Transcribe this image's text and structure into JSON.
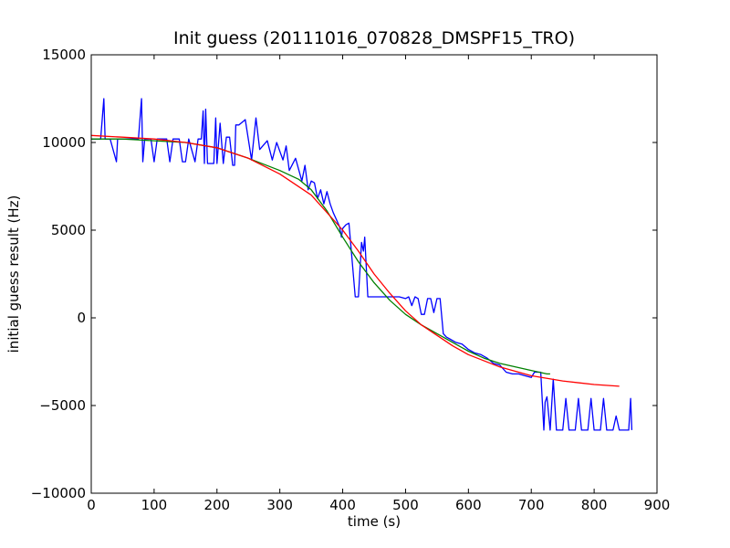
{
  "chart_data": {
    "type": "line",
    "title": "Init guess (20111016_070828_DMSPF15_TRO)",
    "xlabel": "time (s)",
    "ylabel": "initial guess result (Hz)",
    "xlim": [
      0,
      900
    ],
    "ylim": [
      -10000,
      15000
    ],
    "xticks": [
      0,
      100,
      200,
      300,
      400,
      500,
      600,
      700,
      800,
      900
    ],
    "yticks": [
      -10000,
      -5000,
      0,
      5000,
      10000,
      15000
    ],
    "xtick_labels": [
      "0",
      "100",
      "200",
      "300",
      "400",
      "500",
      "600",
      "700",
      "800",
      "900"
    ],
    "ytick_labels": [
      "−10000",
      "−5000",
      "0",
      "5000",
      "10000",
      "15000"
    ],
    "grid": false,
    "legend": "none",
    "series": [
      {
        "color": "#0000ff",
        "x": [
          0,
          5,
          15,
          20,
          22,
          30,
          40,
          42,
          45,
          60,
          75,
          80,
          82,
          85,
          95,
          100,
          105,
          110,
          120,
          125,
          130,
          140,
          145,
          150,
          155,
          165,
          170,
          175,
          178,
          180,
          182,
          185,
          195,
          198,
          200,
          205,
          210,
          215,
          220,
          225,
          228,
          230,
          235,
          245,
          255,
          262,
          268,
          280,
          288,
          295,
          305,
          310,
          315,
          325,
          335,
          340,
          345,
          350,
          355,
          360,
          365,
          370,
          375,
          380,
          385,
          390,
          395,
          398,
          400,
          405,
          410,
          420,
          425,
          430,
          433,
          435,
          440,
          450,
          460,
          470,
          480,
          490,
          500,
          505,
          510,
          515,
          520,
          525,
          530,
          535,
          540,
          545,
          550,
          555,
          560,
          565,
          570,
          580,
          590,
          600,
          610,
          620,
          630,
          640,
          650,
          660,
          670,
          680,
          690,
          700,
          705,
          710,
          715,
          720,
          722,
          725,
          730,
          735,
          740,
          745,
          750,
          755,
          760,
          765,
          770,
          775,
          780,
          785,
          790,
          795,
          800,
          805,
          810,
          815,
          820,
          825,
          830,
          835,
          840,
          845,
          850,
          855,
          858,
          860
        ],
        "y": [
          10200,
          10200,
          10200,
          12500,
          10200,
          10200,
          8900,
          10200,
          10200,
          10200,
          10200,
          12500,
          8900,
          10200,
          10200,
          8900,
          10200,
          10200,
          10200,
          8900,
          10200,
          10200,
          8900,
          8900,
          10200,
          8900,
          10200,
          10200,
          11800,
          8800,
          11900,
          8800,
          8800,
          11400,
          8800,
          11100,
          8800,
          10300,
          10300,
          8700,
          8700,
          11000,
          11000,
          11300,
          9000,
          11400,
          9600,
          10100,
          9000,
          10000,
          9000,
          9800,
          8400,
          9100,
          7800,
          8700,
          7300,
          7800,
          7700,
          6800,
          7300,
          6500,
          7200,
          6500,
          6000,
          5600,
          5200,
          4600,
          5100,
          5300,
          5400,
          1200,
          1200,
          4300,
          3800,
          4600,
          1200,
          1200,
          1200,
          1200,
          1200,
          1200,
          1100,
          1200,
          700,
          1200,
          1100,
          200,
          200,
          1100,
          1100,
          300,
          1100,
          1100,
          -900,
          -1100,
          -1200,
          -1400,
          -1500,
          -1800,
          -2000,
          -2100,
          -2300,
          -2600,
          -2700,
          -3100,
          -3200,
          -3200,
          -3300,
          -3400,
          -3100,
          -3100,
          -3100,
          -6400,
          -4800,
          -4500,
          -6400,
          -3500,
          -6400,
          -6400,
          -6400,
          -4600,
          -6400,
          -6400,
          -6400,
          -4600,
          -6400,
          -6400,
          -6400,
          -4600,
          -6400,
          -6400,
          -6400,
          -4600,
          -6400,
          -6400,
          -6400,
          -5600,
          -6400,
          -6400,
          -6400,
          -6400,
          -4600,
          -6400
        ]
      },
      {
        "color": "#008000",
        "x": [
          0,
          50,
          100,
          150,
          200,
          250,
          300,
          330,
          350,
          375,
          400,
          425,
          450,
          475,
          500,
          525,
          550,
          575,
          600,
          625,
          650,
          675,
          700,
          725,
          730
        ],
        "y": [
          10200,
          10200,
          10100,
          10000,
          9700,
          9100,
          8400,
          7900,
          7300,
          6100,
          4600,
          3200,
          2000,
          1000,
          200,
          -400,
          -900,
          -1400,
          -1900,
          -2300,
          -2600,
          -2800,
          -3000,
          -3200,
          -3200
        ]
      },
      {
        "color": "#ff0000",
        "x": [
          0,
          50,
          100,
          150,
          200,
          250,
          300,
          350,
          400,
          425,
          450,
          475,
          500,
          525,
          550,
          575,
          600,
          650,
          700,
          750,
          800,
          840
        ],
        "y": [
          10400,
          10300,
          10200,
          10000,
          9700,
          9100,
          8200,
          7000,
          5000,
          3800,
          2500,
          1400,
          400,
          -400,
          -1000,
          -1600,
          -2100,
          -2800,
          -3300,
          -3600,
          -3800,
          -3900
        ]
      }
    ]
  }
}
